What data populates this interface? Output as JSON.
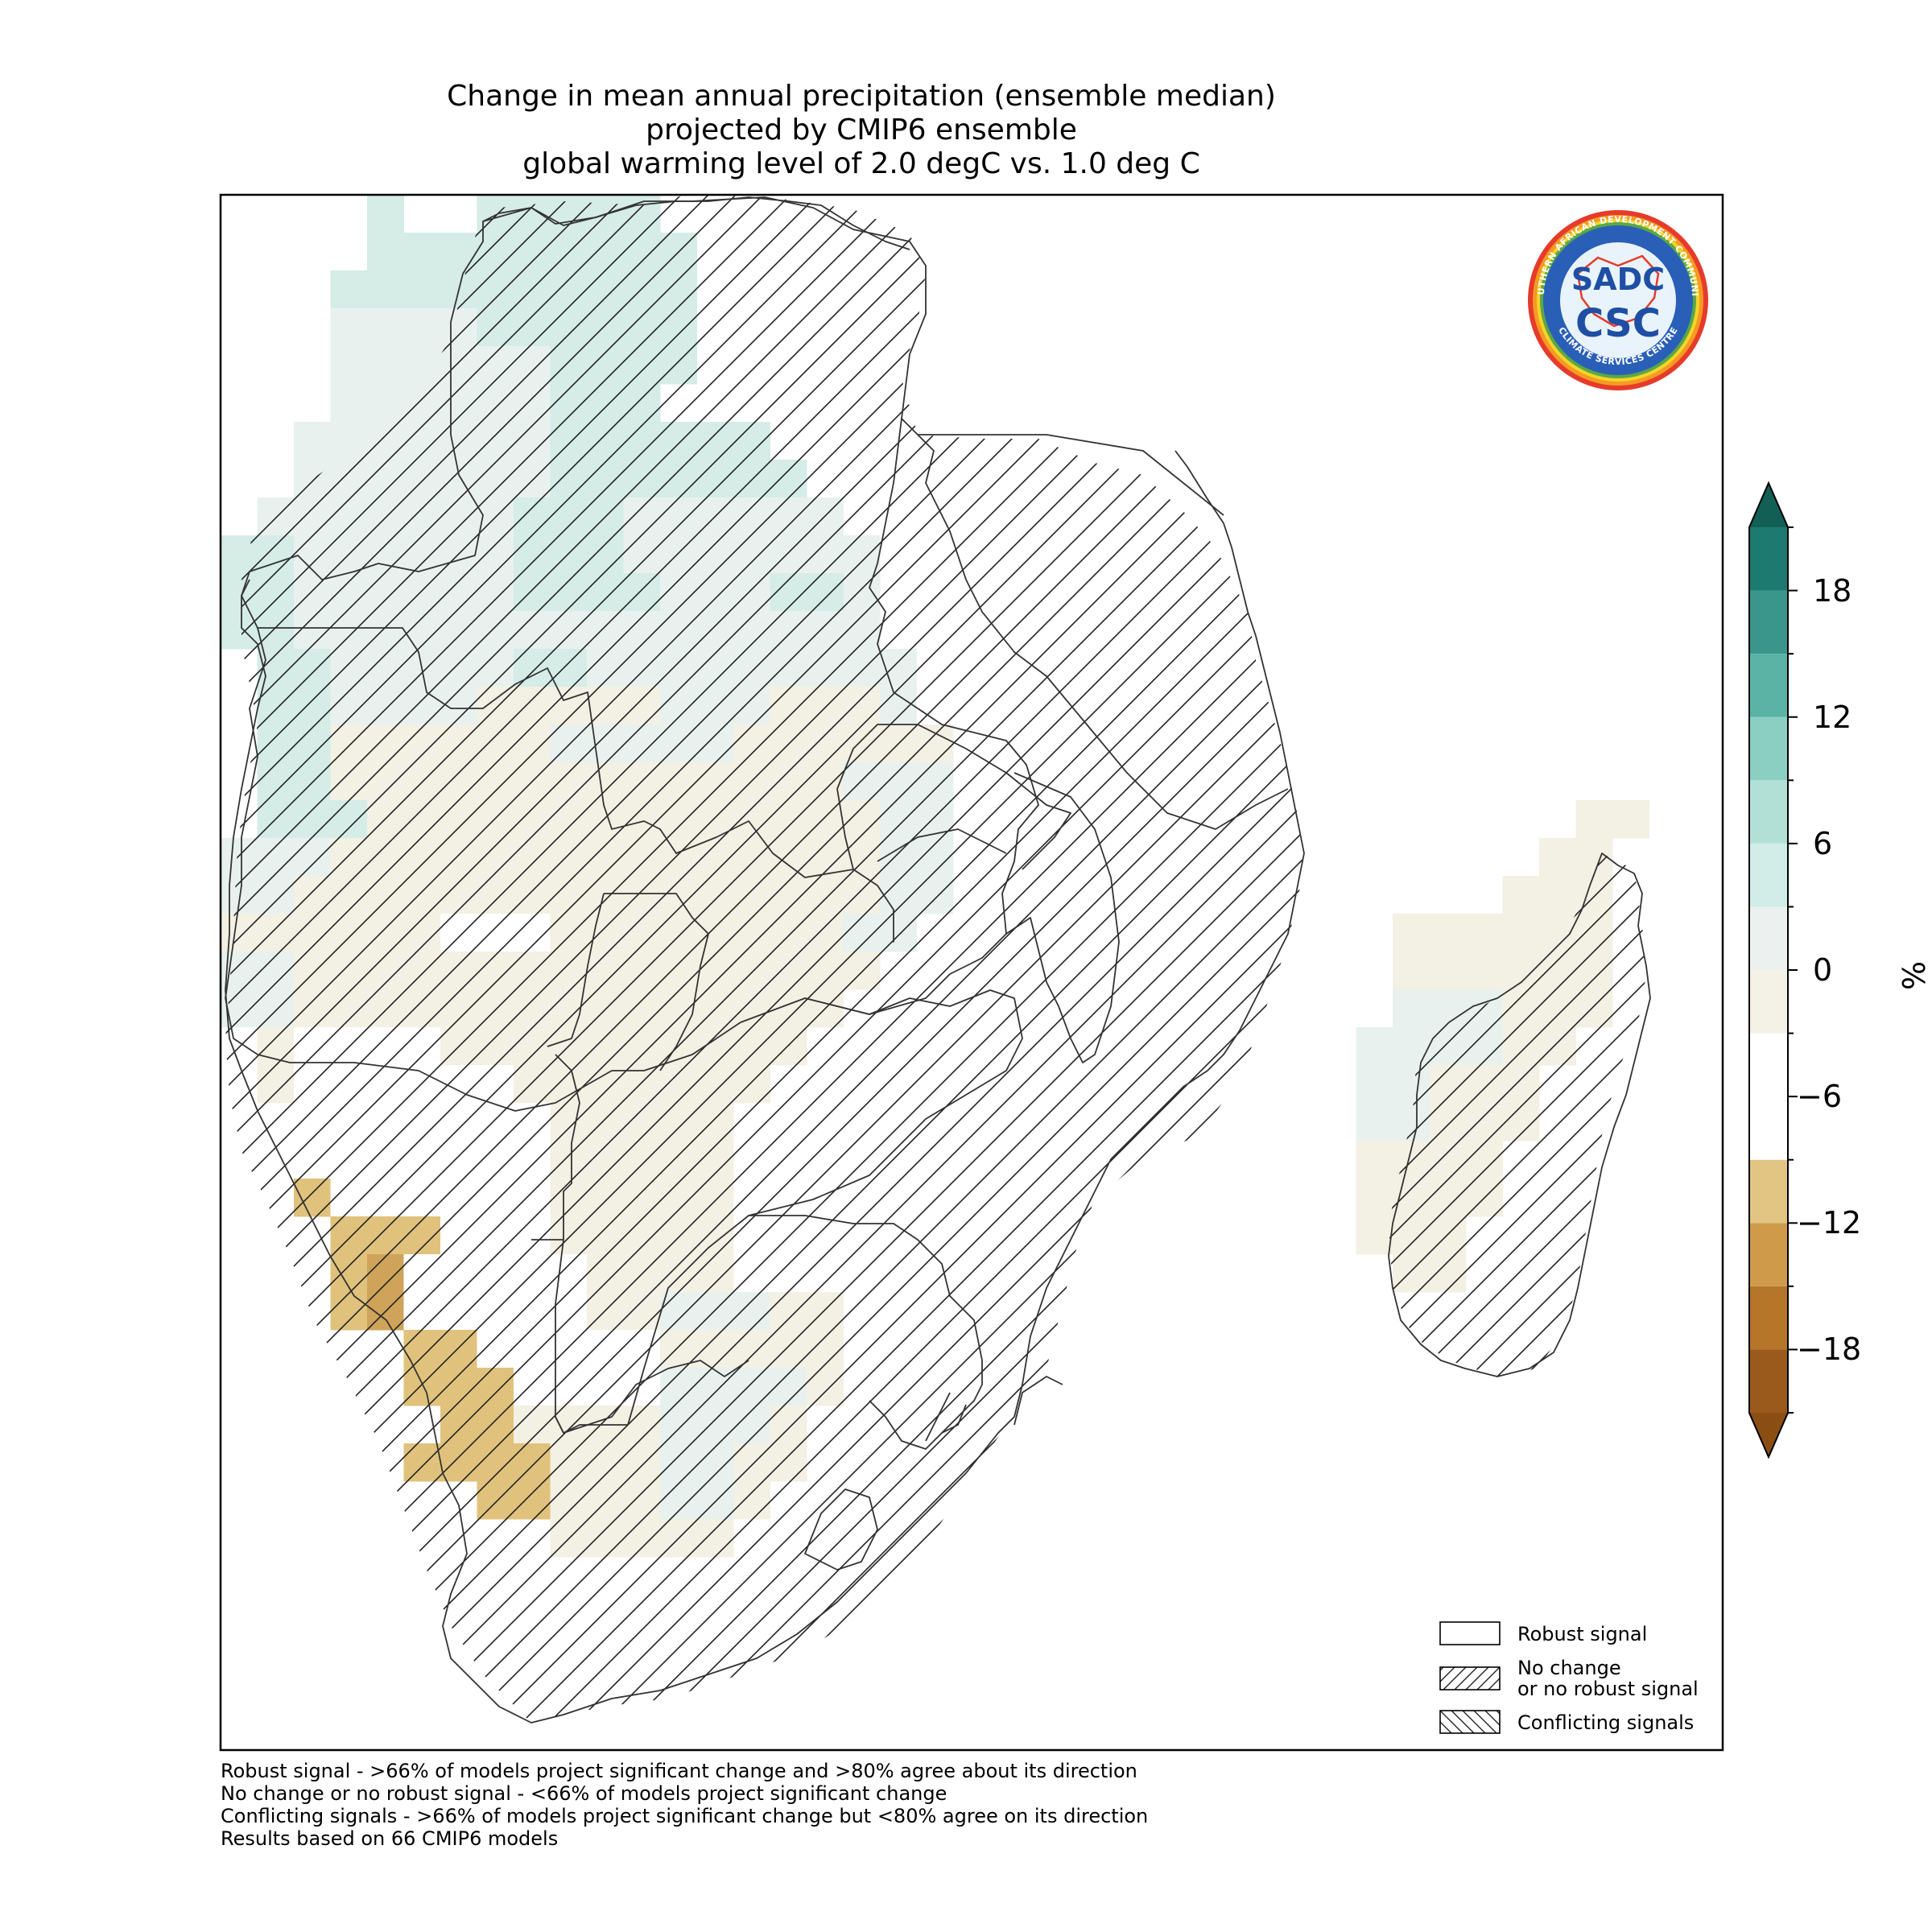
{
  "title": {
    "line1": "Change in mean annual precipitation (ensemble median)",
    "line2": "projected by CMIP6 ensemble",
    "line3": "global warming level of 2.0 degC vs. 1.0 deg C"
  },
  "logo": {
    "text_top": "SOUTHERN AFRICAN DEVELOPMENT COMMUNITY",
    "text_bottom": "CLIMATE SERVICES CENTRE",
    "mark1": "SADC",
    "mark2": "CSC"
  },
  "legend": {
    "robust": "Robust signal",
    "no_change_1": "No change",
    "no_change_2": "or no robust signal",
    "conflicting": "Conflicting signals"
  },
  "colorbar": {
    "unit": "%",
    "ticks": [
      "18",
      "12",
      "6",
      "0",
      "−6",
      "−12",
      "−18"
    ],
    "tick_values": [
      18,
      12,
      6,
      0,
      -6,
      -12,
      -18
    ],
    "levels": [
      -21,
      -18,
      -15,
      -12,
      -9,
      -6,
      -3,
      0,
      3,
      6,
      9,
      12,
      15,
      18,
      21
    ],
    "colors": [
      "#9a5a1c",
      "#b5762a",
      "#cf9a4a",
      "#e2c583",
      "#ffffff",
      "#ffffff",
      "#f4f1e6",
      "#ecf1f0",
      "#d2ece7",
      "#b2e0d7",
      "#8acfc1",
      "#5ab3a4",
      "#3a968a",
      "#1c7a70"
    ],
    "extend_low_color": "#8b4e12",
    "extend_high_color": "#125f56"
  },
  "footnotes": {
    "line1": "Robust signal - >66% of models project significant change and >80% agree about its direction",
    "line2": "No change or no robust signal - <66% of models project significant change",
    "line3": "Conflicting signals - >66% of models project significant change but <80% agree on its direction",
    "line4": "Results based on 66 CMIP6 models"
  }
}
